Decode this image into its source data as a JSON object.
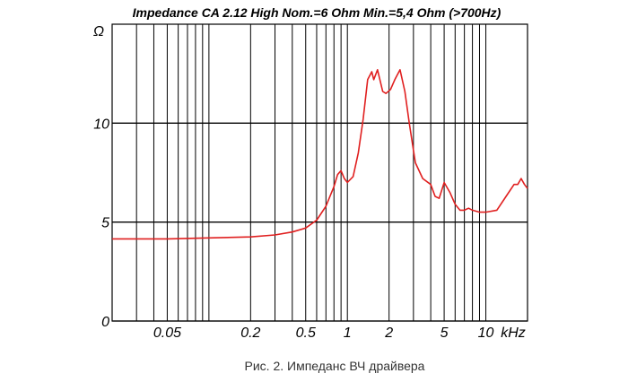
{
  "chart_data": {
    "type": "line",
    "title": "Impedance CA 2.12 High Nom.=6 Ohm  Min.=5,4 Ohm  (>700Hz)",
    "caption": "Рис. 2. Импеданс ВЧ драйвера",
    "x_unit": "kHz",
    "y_unit": "Ω",
    "x_scale": "log",
    "xlim": [
      0.02,
      20
    ],
    "ylim": [
      0,
      15
    ],
    "grid": true,
    "x_ticks": [
      {
        "value": 0.05,
        "label": "0.05"
      },
      {
        "value": 0.2,
        "label": "0.2"
      },
      {
        "value": 0.5,
        "label": "0.5"
      },
      {
        "value": 1,
        "label": "1"
      },
      {
        "value": 2,
        "label": "2"
      },
      {
        "value": 5,
        "label": "5"
      },
      {
        "value": 10,
        "label": "10"
      }
    ],
    "y_ticks": [
      {
        "value": 0,
        "label": "0"
      },
      {
        "value": 5,
        "label": "5"
      },
      {
        "value": 10,
        "label": "10"
      }
    ],
    "series": [
      {
        "color": "#e02020",
        "points": [
          [
            0.02,
            4.15
          ],
          [
            0.05,
            4.15
          ],
          [
            0.1,
            4.2
          ],
          [
            0.2,
            4.25
          ],
          [
            0.3,
            4.35
          ],
          [
            0.4,
            4.5
          ],
          [
            0.5,
            4.7
          ],
          [
            0.6,
            5.1
          ],
          [
            0.7,
            5.8
          ],
          [
            0.8,
            6.8
          ],
          [
            0.85,
            7.4
          ],
          [
            0.9,
            7.6
          ],
          [
            0.95,
            7.2
          ],
          [
            1.0,
            7.0
          ],
          [
            1.1,
            7.3
          ],
          [
            1.2,
            8.5
          ],
          [
            1.3,
            10.2
          ],
          [
            1.4,
            12.2
          ],
          [
            1.5,
            12.6
          ],
          [
            1.55,
            12.2
          ],
          [
            1.65,
            12.7
          ],
          [
            1.8,
            11.6
          ],
          [
            1.9,
            11.5
          ],
          [
            2.05,
            11.7
          ],
          [
            2.2,
            12.2
          ],
          [
            2.4,
            12.7
          ],
          [
            2.6,
            11.6
          ],
          [
            2.8,
            10.0
          ],
          [
            3.1,
            8.0
          ],
          [
            3.5,
            7.2
          ],
          [
            4.0,
            6.9
          ],
          [
            4.3,
            6.3
          ],
          [
            4.6,
            6.2
          ],
          [
            5.0,
            7.0
          ],
          [
            5.5,
            6.5
          ],
          [
            6.0,
            5.9
          ],
          [
            6.5,
            5.6
          ],
          [
            7.0,
            5.6
          ],
          [
            7.5,
            5.7
          ],
          [
            8.0,
            5.6
          ],
          [
            9.0,
            5.5
          ],
          [
            10.0,
            5.5
          ],
          [
            12.0,
            5.6
          ],
          [
            14.0,
            6.3
          ],
          [
            16.0,
            6.9
          ],
          [
            17.0,
            6.9
          ],
          [
            18.0,
            7.2
          ],
          [
            19.0,
            6.9
          ],
          [
            20.0,
            6.7
          ]
        ]
      }
    ]
  }
}
